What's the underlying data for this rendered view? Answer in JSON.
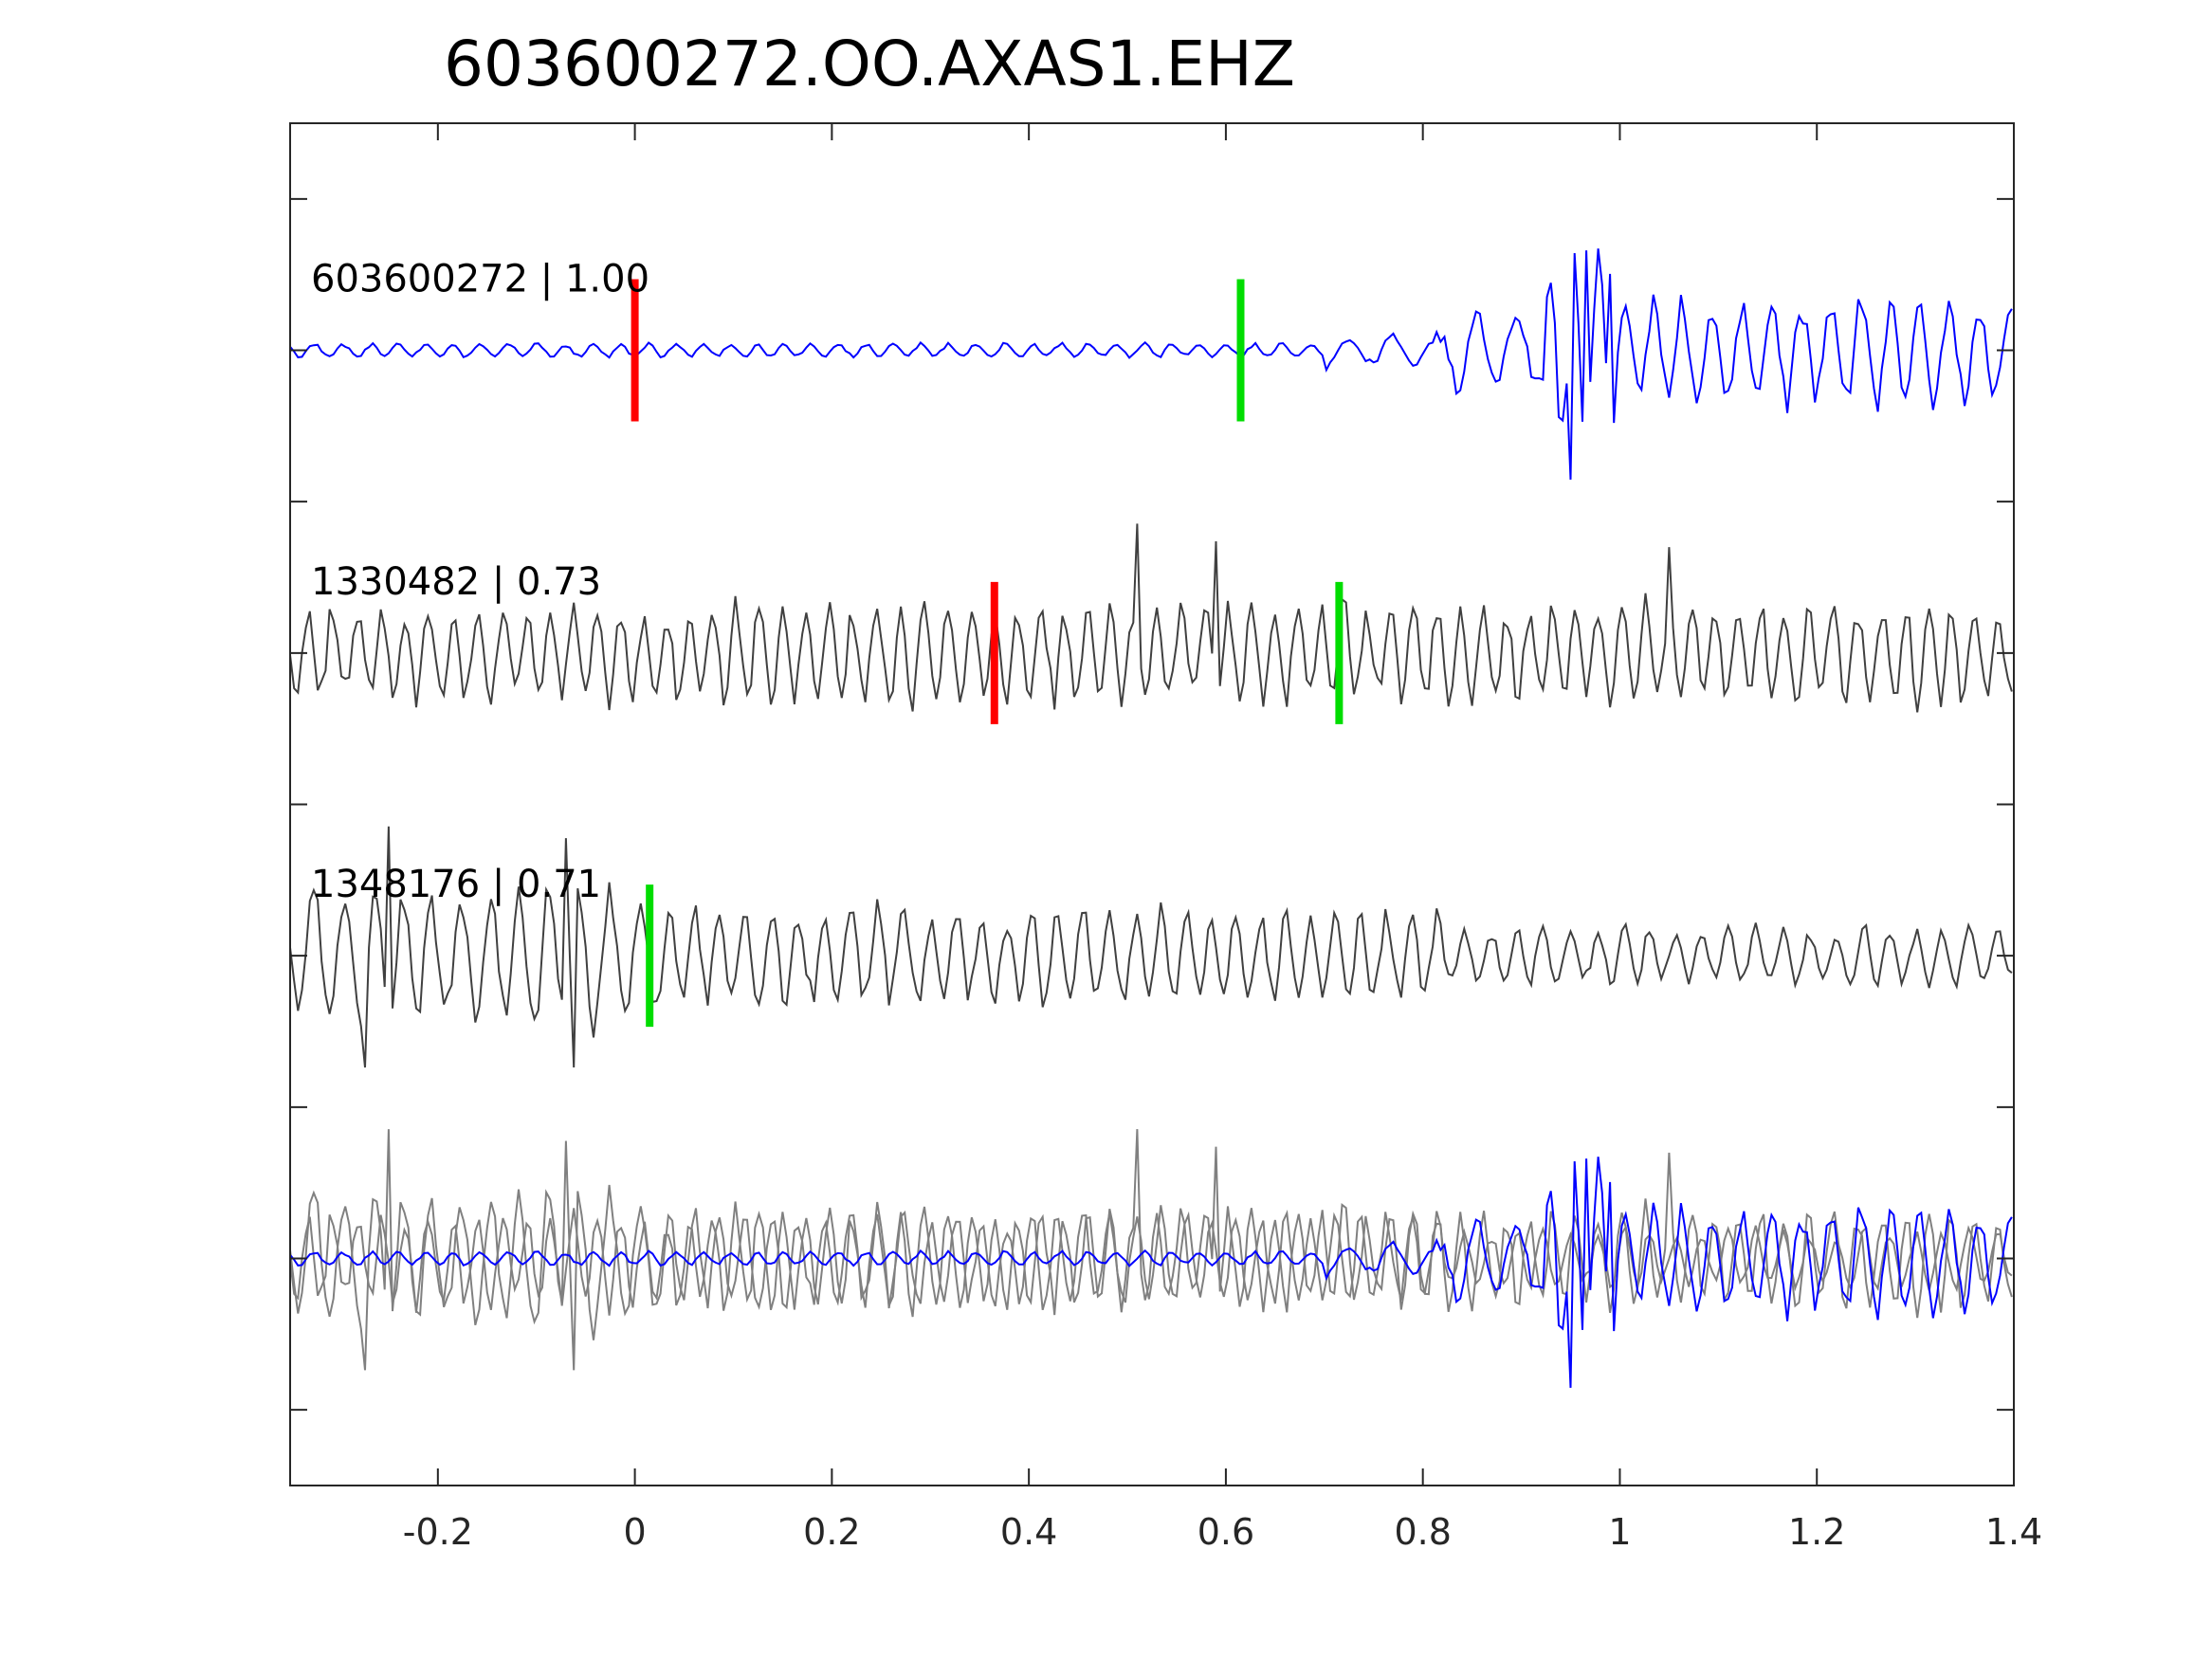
{
  "chart_data": {
    "type": "line",
    "title": "603600272.OO.AXAS1.EHZ",
    "xlabel": "",
    "ylabel": "",
    "xlim": [
      -0.35,
      1.4
    ],
    "x_ticks": [
      -0.2,
      0,
      0.2,
      0.4,
      0.6,
      0.8,
      1,
      1.2,
      1.4
    ],
    "x_tick_labels": [
      "-0.2",
      "0",
      "0.2",
      "0.4",
      "0.6",
      "0.8",
      "1",
      "1.2",
      "1.4"
    ],
    "y_tick_count": 9,
    "grid": false,
    "legend": "none",
    "colors": {
      "template": "#0000ff",
      "trace": "#404040",
      "overlay_gray": "#808080",
      "p_pick": "#ff0000",
      "s_pick": "#00dd00",
      "axes": "#262626"
    },
    "series": [
      {
        "label": "603600272 | 1.00",
        "offset": 0,
        "color": "#0000ff",
        "p_pick": 0.0,
        "s_pick": 0.615,
        "segments": [
          {
            "x0": -0.35,
            "x1": 0.7,
            "amp": 0.13,
            "period": 0.028
          },
          {
            "x0": 0.7,
            "x1": 0.82,
            "amp": 0.3,
            "period": 0.045
          },
          {
            "x0": 0.82,
            "x1": 0.92,
            "amp": 0.7,
            "period": 0.04
          },
          {
            "x0": 0.92,
            "x1": 1.0,
            "amp": 1.8,
            "period": 0.025
          },
          {
            "x0": 1.0,
            "x1": 1.4,
            "amp": 1.0,
            "period": 0.03
          }
        ],
        "peaks": [
          {
            "x": 0.95,
            "y": -2.2
          },
          {
            "x": 0.965,
            "y": 1.7
          },
          {
            "x": 0.99,
            "y": 1.3
          }
        ]
      },
      {
        "label": "1330482 | 0.73",
        "offset": 1,
        "color": "#404040",
        "p_pick": 0.365,
        "s_pick": 0.715,
        "segments": [
          {
            "x0": -0.35,
            "x1": 1.4,
            "amp": 0.95,
            "period": 0.024
          }
        ],
        "peaks": [
          {
            "x": 0.51,
            "y": 2.2
          },
          {
            "x": 0.59,
            "y": 1.9
          },
          {
            "x": 1.05,
            "y": 1.8
          }
        ]
      },
      {
        "label": "1348176 | 0.71",
        "offset": 2,
        "color": "#404040",
        "p_pick": null,
        "s_pick": 0.015,
        "segments": [
          {
            "x0": -0.35,
            "x1": 0.03,
            "amp": 1.3,
            "period": 0.03
          },
          {
            "x0": 0.03,
            "x1": 0.82,
            "amp": 0.9,
            "period": 0.026
          },
          {
            "x0": 0.82,
            "x1": 1.4,
            "amp": 0.55,
            "period": 0.027
          }
        ],
        "peaks": [
          {
            "x": -0.25,
            "y": 2.2
          },
          {
            "x": -0.275,
            "y": -1.9
          },
          {
            "x": -0.07,
            "y": 2.0
          },
          {
            "x": -0.06,
            "y": -1.9
          }
        ]
      },
      {
        "label": "",
        "offset": 3,
        "color": "#808080",
        "overlay_of": [
          1,
          2,
          0
        ]
      }
    ]
  }
}
